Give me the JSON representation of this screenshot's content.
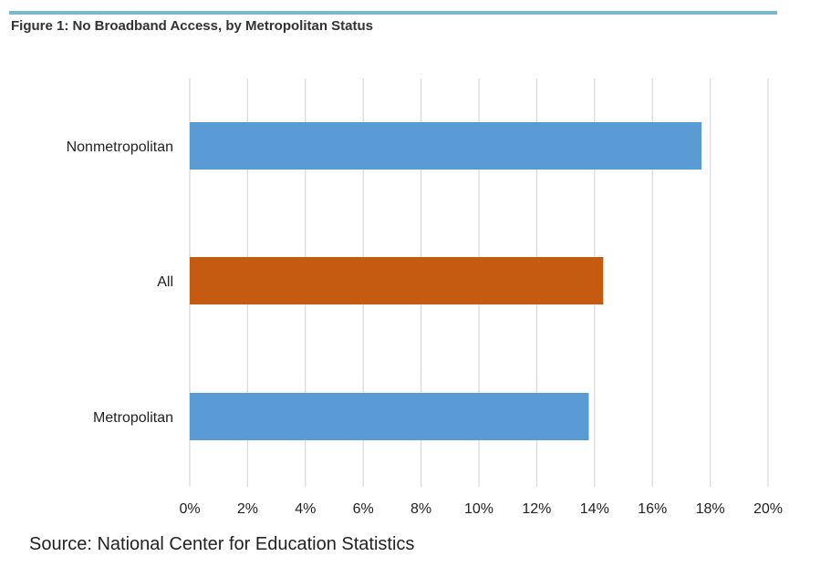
{
  "figure": {
    "title": "Figure 1: No Broadband Access, by Metropolitan Status",
    "source": "Source: National Center for Education Statistics"
  },
  "colors": {
    "metro_bar": "#5b9bd5",
    "all_bar": "#c55a11",
    "rule": "#7ab8d0",
    "grid": "#d9d9d9"
  },
  "chart_data": {
    "type": "bar",
    "orientation": "horizontal",
    "categories": [
      "Nonmetropolitan",
      "All",
      "Metropolitan"
    ],
    "values": [
      17.7,
      14.3,
      13.8
    ],
    "value_unit": "%",
    "bar_colors": [
      "#5b9bd5",
      "#c55a11",
      "#5b9bd5"
    ],
    "xlim": [
      0,
      20
    ],
    "xticks": [
      "0%",
      "2%",
      "4%",
      "6%",
      "8%",
      "10%",
      "12%",
      "14%",
      "16%",
      "18%",
      "20%"
    ],
    "grid": true,
    "xlabel": "",
    "ylabel": ""
  }
}
